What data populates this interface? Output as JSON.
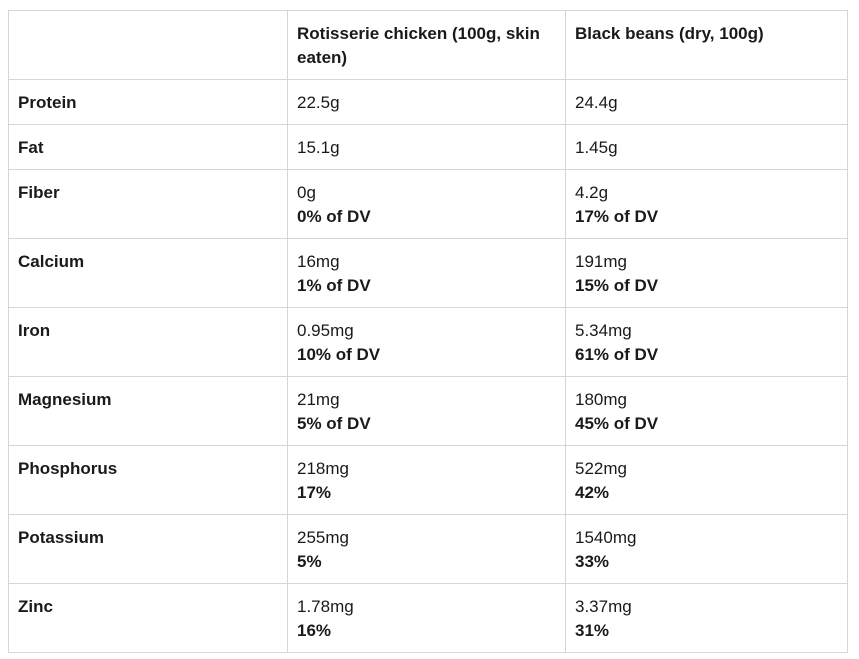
{
  "table": {
    "headers": [
      "",
      "Rotisserie chicken (100g, skin eaten)",
      "Black beans (dry, 100g)"
    ],
    "rows": [
      {
        "nutrient": "Protein",
        "chicken": {
          "amount": "22.5g",
          "dv": ""
        },
        "beans": {
          "amount": "24.4g",
          "dv": ""
        }
      },
      {
        "nutrient": "Fat",
        "chicken": {
          "amount": "15.1g",
          "dv": ""
        },
        "beans": {
          "amount": "1.45g",
          "dv": ""
        }
      },
      {
        "nutrient": "Fiber",
        "chicken": {
          "amount": "0g",
          "dv": "0% of DV"
        },
        "beans": {
          "amount": "4.2g",
          "dv": "17% of DV"
        }
      },
      {
        "nutrient": "Calcium",
        "chicken": {
          "amount": "16mg",
          "dv": "1% of DV"
        },
        "beans": {
          "amount": "191mg",
          "dv": "15% of DV"
        }
      },
      {
        "nutrient": "Iron",
        "chicken": {
          "amount": "0.95mg",
          "dv": "10% of DV"
        },
        "beans": {
          "amount": "5.34mg",
          "dv": "61% of DV"
        }
      },
      {
        "nutrient": "Magnesium",
        "chicken": {
          "amount": "21mg",
          "dv": "5% of DV"
        },
        "beans": {
          "amount": "180mg",
          "dv": "45% of DV"
        }
      },
      {
        "nutrient": "Phosphorus",
        "chicken": {
          "amount": "218mg",
          "dv": "17%"
        },
        "beans": {
          "amount": "522mg",
          "dv": "42%"
        }
      },
      {
        "nutrient": "Potassium",
        "chicken": {
          "amount": "255mg",
          "dv": "5%"
        },
        "beans": {
          "amount": "1540mg",
          "dv": "33%"
        }
      },
      {
        "nutrient": "Zinc",
        "chicken": {
          "amount": "1.78mg",
          "dv": "16%"
        },
        "beans": {
          "amount": "3.37mg",
          "dv": "31%"
        }
      }
    ]
  }
}
